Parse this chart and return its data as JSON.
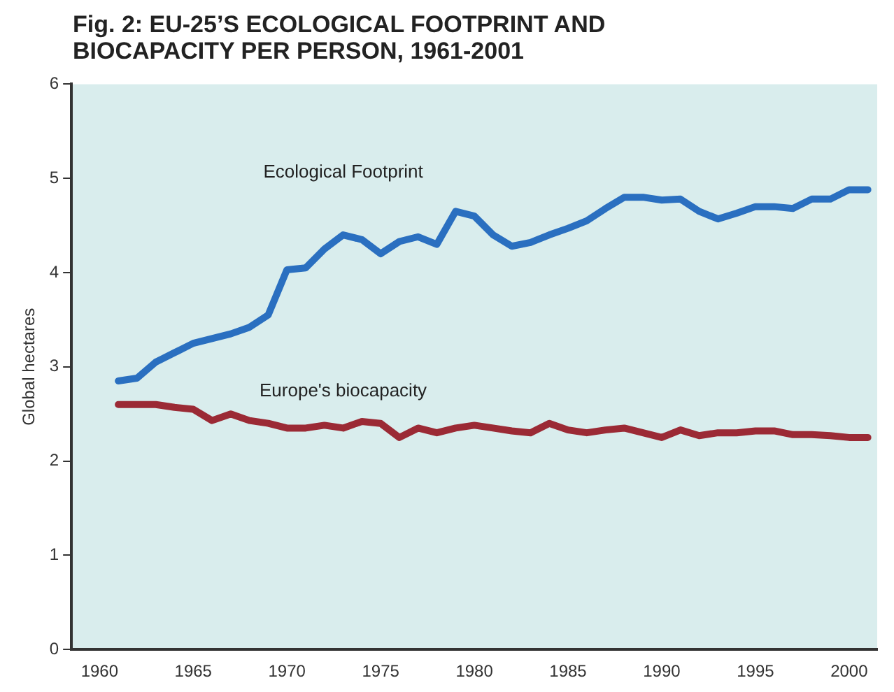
{
  "chart_data": {
    "type": "line",
    "title": "Fig. 2: EU-25’S ECOLOGICAL FOOTPRINT AND BIOCAPACITY PER PERSON, 1961-2001",
    "ylabel": "Global hectares",
    "x": [
      1961,
      1962,
      1963,
      1964,
      1965,
      1966,
      1967,
      1968,
      1969,
      1970,
      1971,
      1972,
      1973,
      1974,
      1975,
      1976,
      1977,
      1978,
      1979,
      1980,
      1981,
      1982,
      1983,
      1984,
      1985,
      1986,
      1987,
      1988,
      1989,
      1990,
      1991,
      1992,
      1993,
      1994,
      1995,
      1996,
      1997,
      1998,
      1999,
      2000,
      2001
    ],
    "xlim": [
      1958.5,
      2001.5
    ],
    "xticks": [
      1960,
      1965,
      1970,
      1975,
      1980,
      1985,
      1990,
      1995,
      2000
    ],
    "ylim": [
      0,
      6
    ],
    "yticks": [
      0,
      1,
      2,
      3,
      4,
      5,
      6
    ],
    "grid": false,
    "legend": false,
    "marker": "none",
    "line_style": "solid",
    "series": [
      {
        "name": "Ecological Footprint",
        "color": "#2a6fc0",
        "values": [
          2.85,
          2.88,
          3.05,
          3.15,
          3.25,
          3.3,
          3.35,
          3.42,
          3.55,
          4.03,
          4.05,
          4.25,
          4.4,
          4.35,
          4.2,
          4.33,
          4.38,
          4.3,
          4.65,
          4.6,
          4.4,
          4.28,
          4.32,
          4.4,
          4.47,
          4.55,
          4.68,
          4.8,
          4.8,
          4.77,
          4.78,
          4.65,
          4.57,
          4.63,
          4.7,
          4.7,
          4.68,
          4.78,
          4.78,
          4.88,
          4.88
        ]
      },
      {
        "name": "Europe's biocapacity",
        "color": "#9b2a35",
        "values": [
          2.6,
          2.6,
          2.6,
          2.57,
          2.55,
          2.43,
          2.5,
          2.43,
          2.4,
          2.35,
          2.35,
          2.38,
          2.35,
          2.42,
          2.4,
          2.25,
          2.35,
          2.3,
          2.35,
          2.38,
          2.35,
          2.32,
          2.3,
          2.4,
          2.33,
          2.3,
          2.33,
          2.35,
          2.3,
          2.25,
          2.33,
          2.27,
          2.3,
          2.3,
          2.32,
          2.32,
          2.28,
          2.28,
          2.27,
          2.25,
          2.25
        ]
      }
    ]
  }
}
